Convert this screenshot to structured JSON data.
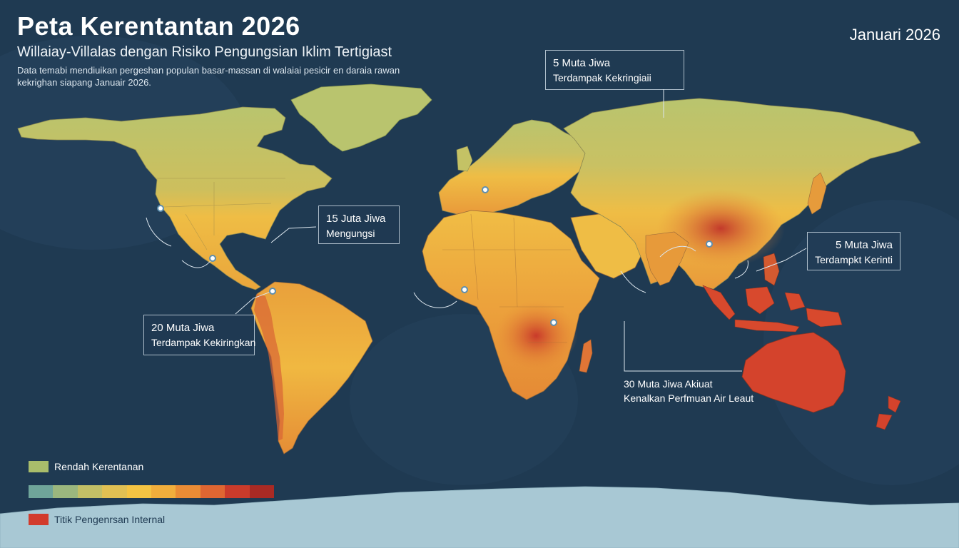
{
  "header": {
    "title": "Peta Kerentantan 2026",
    "subtitle": "Willaiay-Villalas dengan Risiko Pengungsian Iklim Tertigiast",
    "description_line1": "Data temabi mendiuikan pergeshan populan basar-massan di walaiai pesicir en daraia rawan",
    "description_line2": "kekrighan siapang Januair 2026.",
    "date": "Januari 2026"
  },
  "callouts": [
    {
      "id": "north-asia",
      "line1": "5 Muta Jiwa",
      "line2": "Terdampak Kekringiaii"
    },
    {
      "id": "atlantic",
      "line1": "15 Juta Jiwa",
      "line2": "Mengungsi"
    },
    {
      "id": "southeast-asia",
      "line1": "5 Muta Jiwa",
      "line2": "Terdampkt Kerinti"
    },
    {
      "id": "south-america",
      "line1": "20 Muta Jiwa",
      "line2": "Terdampak Kekiringkan"
    },
    {
      "id": "oceania",
      "line1": "30 Muta Jiwa Akiuat",
      "line2": "Kenalkan Perfmuan Air Leaut"
    }
  ],
  "legend": {
    "low_label": "Rendah Kerentanan",
    "low_color": "#a9bd6b",
    "high_label": "Titik Pengenrsan Internal",
    "high_color": "#d23b2c",
    "scale_colors": [
      "#6fa59a",
      "#9bb77e",
      "#c2bf66",
      "#e0c053",
      "#f4c443",
      "#f1ae3c",
      "#ea8c35",
      "#df6632",
      "#ca3b2b",
      "#a92a24"
    ]
  },
  "colors": {
    "ocean": "#1f3a52",
    "ice": "#a8c8d4",
    "land_low": "#b9c46e",
    "land_mid": "#efbd45",
    "land_high": "#e58a35",
    "land_hot": "#cf3d2b"
  }
}
